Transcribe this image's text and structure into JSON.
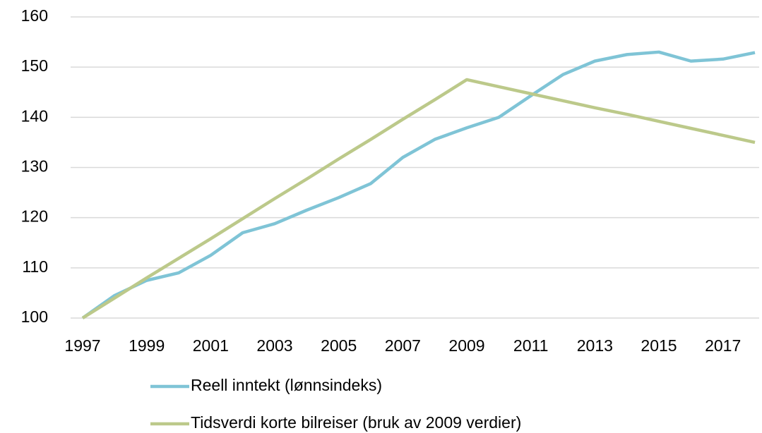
{
  "chart_data": {
    "type": "line",
    "x": [
      1997,
      1998,
      1999,
      2000,
      2001,
      2002,
      2003,
      2004,
      2005,
      2006,
      2007,
      2008,
      2009,
      2010,
      2011,
      2012,
      2013,
      2014,
      2015,
      2016,
      2017,
      2018
    ],
    "series": [
      {
        "name": "Reell inntekt (lønnsindeks)",
        "color": "#7fc4d6",
        "values": [
          100,
          104.5,
          107.5,
          109,
          112.5,
          117,
          118.8,
          121.5,
          124,
          126.8,
          132,
          135.6,
          137.9,
          140,
          144.3,
          148.5,
          151.2,
          152.5,
          153,
          151.2,
          151.6,
          152.9
        ]
      },
      {
        "name": "Tidsverdi korte bilreiser (bruk av 2009 verdier)",
        "color": "#bcc98a",
        "values": [
          100,
          104,
          108,
          111.9,
          115.8,
          119.8,
          123.8,
          127.7,
          131.7,
          135.6,
          139.6,
          143.5,
          147.5,
          146.1,
          144.7,
          143.3,
          141.9,
          140.6,
          139.2,
          137.8,
          136.4,
          135
        ]
      }
    ],
    "xlim": [
      1997,
      2018
    ],
    "xticks": [
      1997,
      1999,
      2001,
      2003,
      2005,
      2007,
      2009,
      2011,
      2013,
      2015,
      2017
    ],
    "ylim": [
      100,
      160
    ],
    "yticks": [
      100,
      110,
      120,
      130,
      140,
      150,
      160
    ],
    "grid": true,
    "legend": "bottom"
  }
}
